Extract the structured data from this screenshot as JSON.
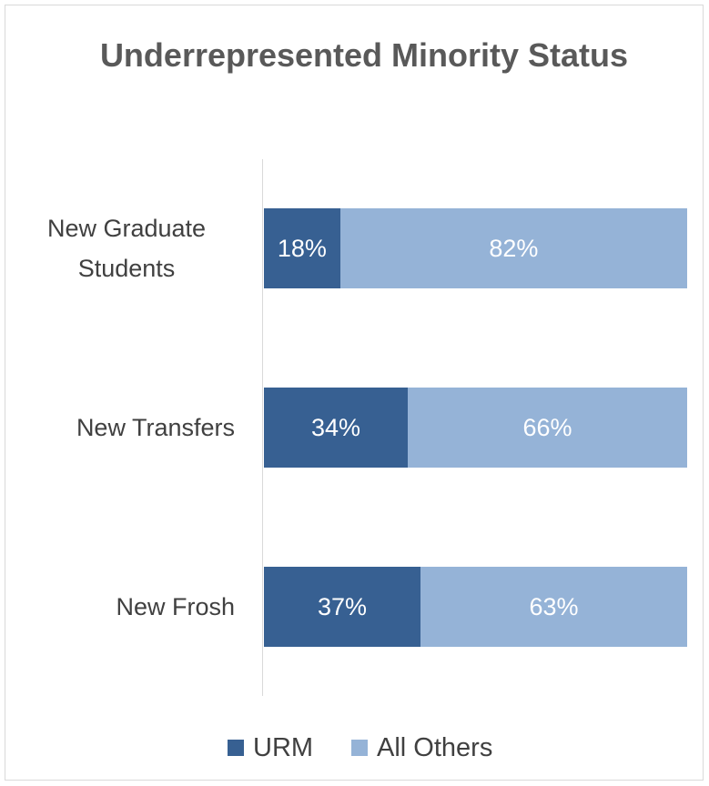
{
  "chart_data": {
    "type": "stacked_bar_horizontal",
    "title": "Underrepresented Minority Status",
    "categories": [
      "New Graduate Students",
      "New Transfers",
      "New Frosh"
    ],
    "series": [
      {
        "name": "URM",
        "color": "#376092",
        "values": [
          18,
          34,
          37
        ],
        "value_labels": [
          "18%",
          "34%",
          "37%"
        ]
      },
      {
        "name": "All Others",
        "color": "#95b3d7",
        "values": [
          82,
          66,
          63
        ],
        "value_labels": [
          "82%",
          "66%",
          "63%"
        ]
      }
    ],
    "xlim": [
      0,
      100
    ],
    "legend": "bottom"
  }
}
